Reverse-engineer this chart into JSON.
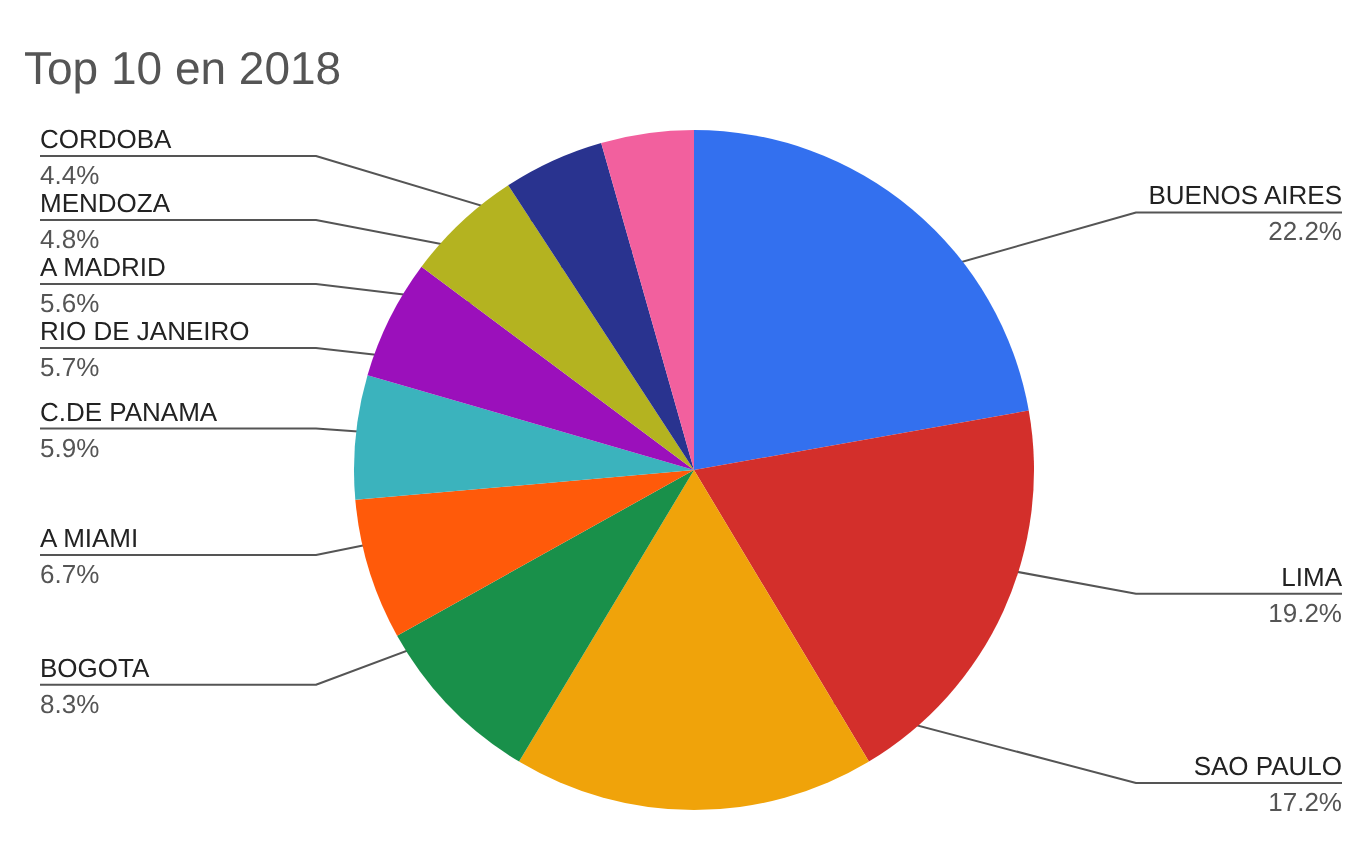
{
  "chart_data": {
    "type": "pie",
    "title": "Top 10 en 2018",
    "categories": [
      "BUENOS AIRES",
      "LIMA",
      "SAO PAULO",
      "BOGOTA",
      "A MIAMI",
      "C.DE PANAMA",
      "RIO DE JANEIRO",
      "A MADRID",
      "MENDOZA",
      "CORDOBA"
    ],
    "values": [
      22.2,
      19.2,
      17.2,
      8.3,
      6.7,
      5.9,
      5.7,
      5.6,
      4.8,
      4.4
    ],
    "value_labels": [
      "22.2%",
      "19.2%",
      "17.2%",
      "8.3%",
      "6.7%",
      "5.9%",
      "5.7%",
      "5.6%",
      "4.8%",
      "4.4%"
    ],
    "colors": [
      "#3370ef",
      "#d32f2b",
      "#f0a30a",
      "#19904a",
      "#ff5a0a",
      "#3bb3bd",
      "#9b10bb",
      "#b4b320",
      "#29338f",
      "#f2609e"
    ],
    "legend": false
  }
}
